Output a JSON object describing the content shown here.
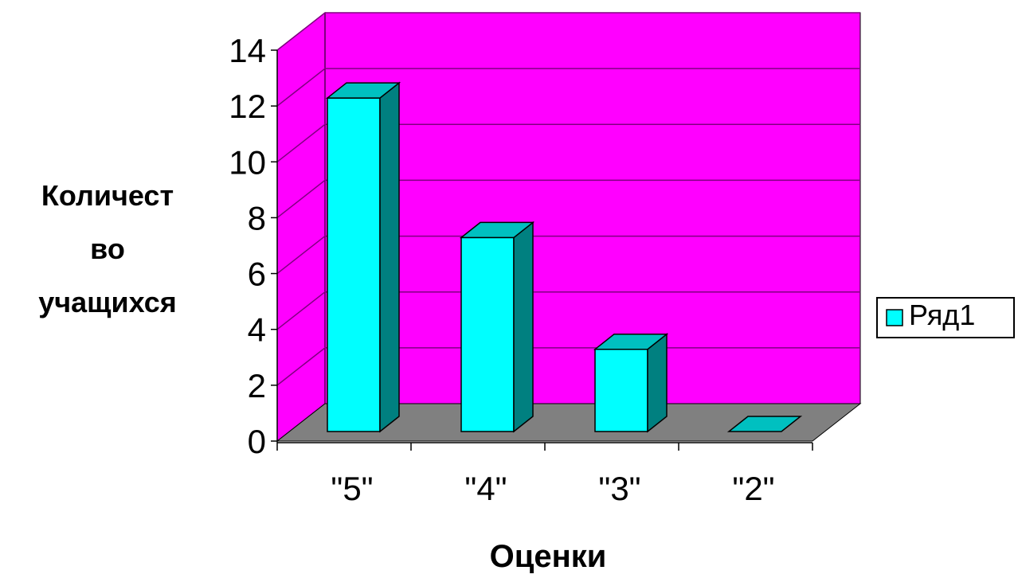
{
  "chart_data": {
    "type": "bar",
    "style": "3d-column",
    "categories": [
      "\"5\"",
      "\"4\"",
      "\"3\"",
      "\"2\""
    ],
    "series": [
      {
        "name": "Ряд1",
        "values": [
          13,
          8,
          4,
          0
        ],
        "color": "#00ffff"
      }
    ],
    "title": "",
    "xlabel": "Оценки",
    "ylabel_lines": [
      "Количест",
      "во",
      "учащихся"
    ],
    "ylim": [
      0,
      14
    ],
    "yticks": [
      0,
      2,
      4,
      6,
      8,
      10,
      12,
      14
    ],
    "grid": true,
    "legend_position": "right",
    "colors": {
      "back_wall": "#ff00ff",
      "floor": "#808080",
      "bar_front": "#00ffff",
      "bar_side": "#008080",
      "bar_top": "#00c0c0",
      "gridline": "#800080",
      "axis": "#000000"
    }
  }
}
